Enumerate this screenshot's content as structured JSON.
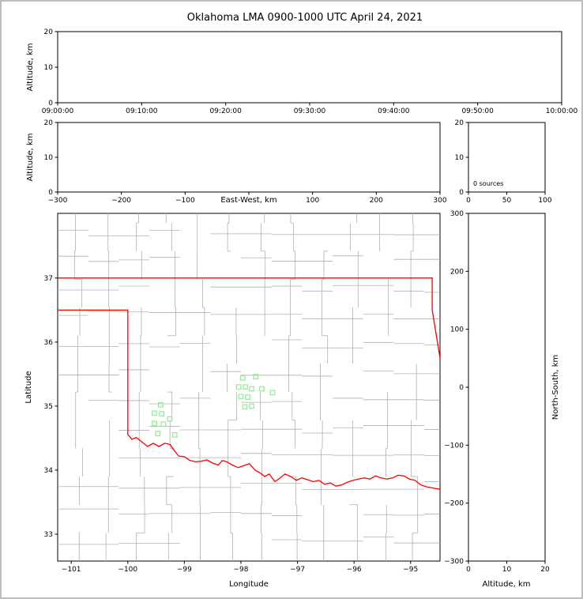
{
  "title": "Oklahoma LMA 0900-1000 UTC April 24, 2021",
  "colors": {
    "frame": "#bdbdbd",
    "axis": "#000000",
    "county_lines": "#b0b0b0",
    "state_border": "#ff0000",
    "station_marker": "#90EE90",
    "background": "#ffffff"
  },
  "chart_data": [
    {
      "id": "time_height_panel",
      "type": "scatter",
      "xlabel": "",
      "ylabel": "Altitude, km",
      "x_tick_labels": [
        "09:00:00",
        "09:10:00",
        "09:20:00",
        "09:30:00",
        "09:40:00",
        "09:50:00",
        "10:00:00"
      ],
      "ylim": [
        0,
        20
      ],
      "y_ticks": [
        0,
        10,
        20
      ],
      "y_tick_labels": [
        "0",
        "10",
        "20"
      ],
      "points": []
    },
    {
      "id": "ew_height_panel",
      "type": "scatter",
      "xlabel": "East-West, km",
      "ylabel": "Altitude, km",
      "xlim": [
        -300,
        300
      ],
      "x_ticks": [
        -300,
        -200,
        -100,
        0,
        100,
        200,
        300
      ],
      "x_tick_labels": [
        "−300",
        "−200",
        "−100",
        "",
        "100",
        "200",
        "300"
      ],
      "ylim": [
        0,
        20
      ],
      "y_ticks": [
        0,
        10,
        20
      ],
      "y_tick_labels": [
        "0",
        "10",
        "20"
      ],
      "points": []
    },
    {
      "id": "altitude_histogram_panel",
      "type": "line",
      "xlabel": "",
      "ylabel": "",
      "xlim": [
        0,
        100
      ],
      "x_ticks": [
        0,
        50,
        100
      ],
      "x_tick_labels": [
        "0",
        "50",
        "100"
      ],
      "ylim": [
        0,
        20
      ],
      "y_ticks": [
        0,
        10,
        20
      ],
      "y_tick_labels": [
        "0",
        "10",
        "20"
      ],
      "annotation": "0 sources",
      "points": []
    },
    {
      "id": "plan_view_map_panel",
      "type": "scatter",
      "xlabel": "Longitude",
      "ylabel": "Latitude",
      "xlim": [
        -101.24,
        -94.48
      ],
      "x_ticks": [
        -101,
        -100,
        -99,
        -98,
        -97,
        -96,
        -95
      ],
      "x_tick_labels": [
        "−101",
        "−100",
        "−99",
        "−98",
        "−97",
        "−96",
        "−95"
      ],
      "ylim": [
        32.58,
        38.01
      ],
      "y_ticks": [
        33,
        34,
        35,
        36,
        37
      ],
      "y_tick_labels": [
        "33",
        "34",
        "35",
        "36",
        "37"
      ],
      "stations": [
        [
          -99.42,
          35.02
        ],
        [
          -99.53,
          34.89
        ],
        [
          -99.4,
          34.88
        ],
        [
          -99.26,
          34.8
        ],
        [
          -99.53,
          34.73
        ],
        [
          -99.37,
          34.72
        ],
        [
          -99.47,
          34.57
        ],
        [
          -99.17,
          34.55
        ],
        [
          -97.97,
          35.44
        ],
        [
          -97.74,
          35.46
        ],
        [
          -98.04,
          35.3
        ],
        [
          -97.92,
          35.3
        ],
        [
          -97.81,
          35.27
        ],
        [
          -97.63,
          35.27
        ],
        [
          -98.0,
          35.15
        ],
        [
          -97.88,
          35.14
        ],
        [
          -97.93,
          34.99
        ],
        [
          -97.81,
          35.0
        ],
        [
          -97.44,
          35.21
        ]
      ],
      "state_border_lines": [
        [
          [
            -101.24,
            37.0
          ],
          [
            -94.618,
            37.0
          ]
        ],
        [
          [
            -101.24,
            36.5
          ],
          [
            -100.0,
            36.5
          ]
        ],
        [
          [
            -100.0,
            36.5
          ],
          [
            -100.0,
            34.56
          ]
        ],
        [
          [
            -94.618,
            37.0
          ],
          [
            -94.618,
            36.5
          ],
          [
            -94.48,
            35.75
          ]
        ],
        [
          [
            -100.0,
            34.56
          ],
          [
            -99.93,
            34.48
          ],
          [
            -99.85,
            34.51
          ],
          [
            -99.75,
            34.44
          ],
          [
            -99.65,
            34.37
          ],
          [
            -99.55,
            34.42
          ],
          [
            -99.45,
            34.37
          ],
          [
            -99.35,
            34.42
          ],
          [
            -99.25,
            34.4
          ],
          [
            -99.2,
            34.33
          ],
          [
            -99.1,
            34.22
          ],
          [
            -99.0,
            34.21
          ],
          [
            -98.9,
            34.15
          ],
          [
            -98.8,
            34.13
          ],
          [
            -98.7,
            34.14
          ],
          [
            -98.6,
            34.16
          ],
          [
            -98.5,
            34.11
          ],
          [
            -98.4,
            34.08
          ],
          [
            -98.33,
            34.15
          ],
          [
            -98.25,
            34.13
          ],
          [
            -98.15,
            34.08
          ],
          [
            -98.05,
            34.04
          ],
          [
            -97.95,
            34.07
          ],
          [
            -97.85,
            34.1
          ],
          [
            -97.75,
            34.0
          ],
          [
            -97.65,
            33.95
          ],
          [
            -97.58,
            33.9
          ],
          [
            -97.5,
            33.94
          ],
          [
            -97.4,
            33.82
          ],
          [
            -97.32,
            33.87
          ],
          [
            -97.22,
            33.94
          ],
          [
            -97.12,
            33.9
          ],
          [
            -97.02,
            33.84
          ],
          [
            -96.92,
            33.88
          ],
          [
            -96.82,
            33.85
          ],
          [
            -96.72,
            33.82
          ],
          [
            -96.62,
            33.84
          ],
          [
            -96.52,
            33.78
          ],
          [
            -96.42,
            33.8
          ],
          [
            -96.32,
            33.75
          ],
          [
            -96.22,
            33.77
          ],
          [
            -96.12,
            33.81
          ],
          [
            -96.02,
            33.84
          ],
          [
            -95.92,
            33.86
          ],
          [
            -95.82,
            33.88
          ],
          [
            -95.72,
            33.86
          ],
          [
            -95.62,
            33.91
          ],
          [
            -95.52,
            33.88
          ],
          [
            -95.42,
            33.86
          ],
          [
            -95.32,
            33.88
          ],
          [
            -95.22,
            33.92
          ],
          [
            -95.12,
            33.91
          ],
          [
            -95.02,
            33.86
          ],
          [
            -94.92,
            33.84
          ],
          [
            -94.82,
            33.77
          ],
          [
            -94.72,
            33.74
          ],
          [
            -94.6,
            33.72
          ],
          [
            -94.48,
            33.7
          ]
        ]
      ],
      "county_grid": {
        "cell_w": 0.54,
        "cell_h": 0.44,
        "jitter": 0.18,
        "seed": 11,
        "skip_prob": 0.1,
        "double_prob": 0.35
      },
      "points": []
    },
    {
      "id": "ns_height_panel",
      "type": "scatter",
      "xlabel": "Altitude, km",
      "ylabel": "North-South, km",
      "xlim": [
        0,
        20
      ],
      "x_ticks": [
        0,
        10,
        20
      ],
      "x_tick_labels": [
        "0",
        "10",
        "20"
      ],
      "ylim": [
        -300,
        300
      ],
      "y_ticks": [
        300,
        200,
        100,
        0,
        -100,
        -200,
        -300
      ],
      "y_tick_labels": [
        "300",
        "200",
        "100",
        "0",
        "−100",
        "−200",
        "−300"
      ],
      "points": []
    }
  ]
}
